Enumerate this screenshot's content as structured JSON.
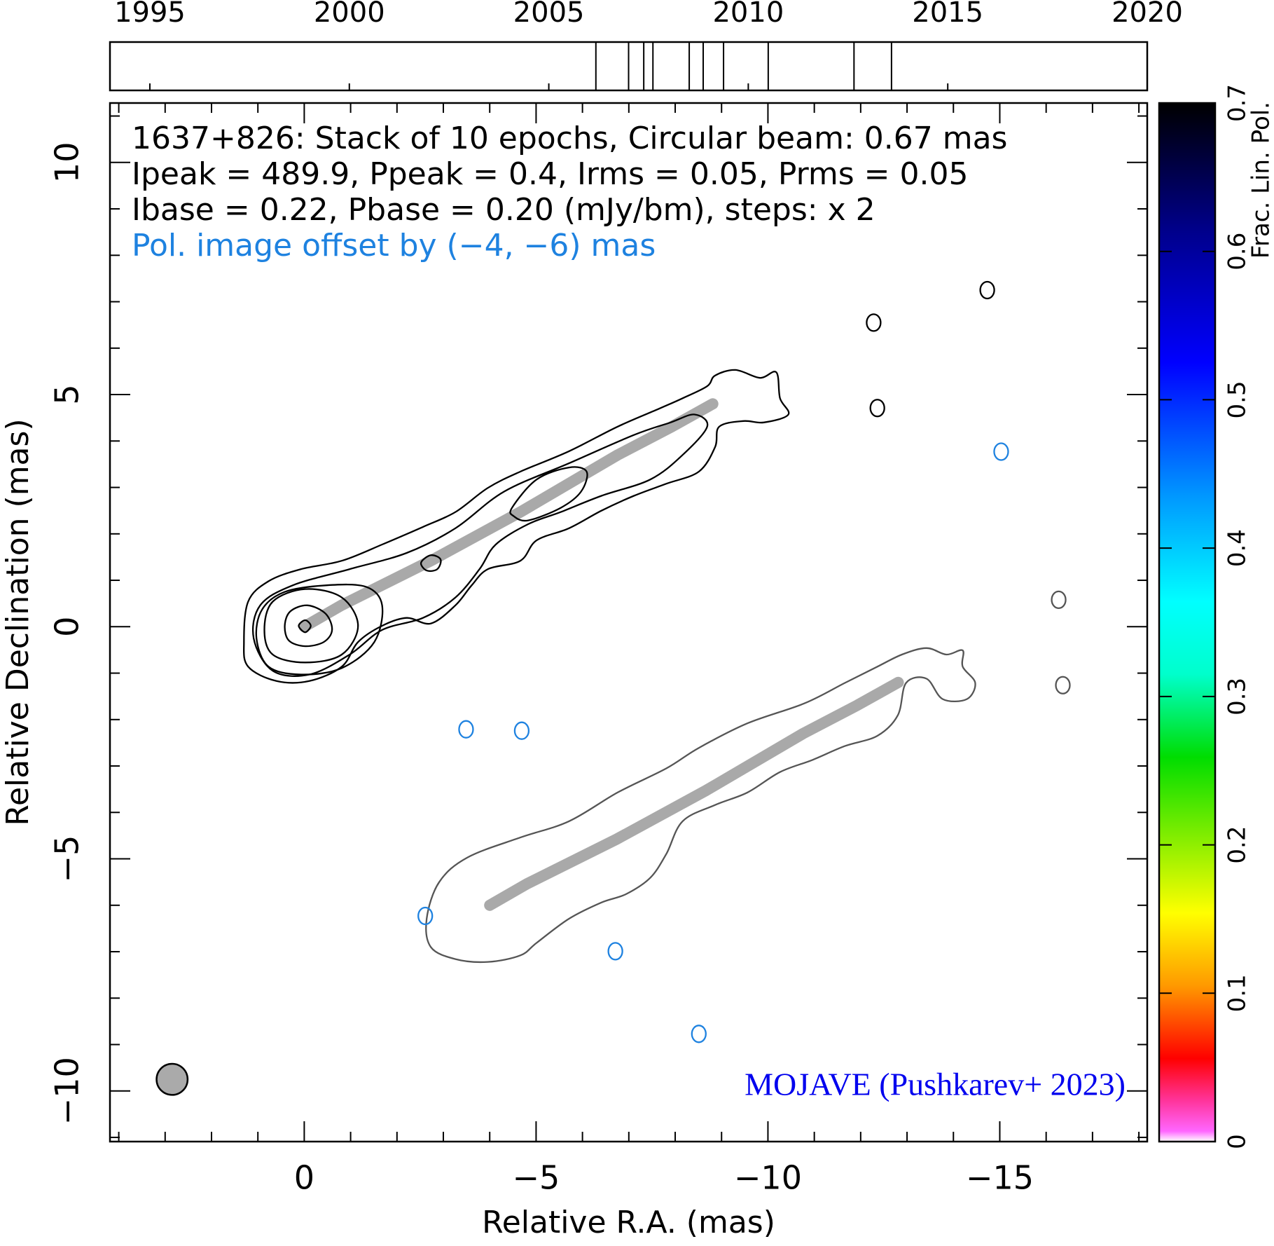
{
  "chart_data": [
    {
      "type": "timeline",
      "xlim": [
        1994.0,
        2020.0
      ],
      "xticks": [
        1995,
        2000,
        2005,
        2010,
        2015,
        2020
      ],
      "epochs": [
        2006.18,
        2007.0,
        2007.38,
        2007.61,
        2008.52,
        2008.87,
        2009.38,
        2010.5,
        2012.65,
        2013.59
      ]
    },
    {
      "type": "contour",
      "title_lines": [
        "1637+826: Stack of 10 epochs, Circular beam: 0.67 mas",
        "Ipeak = 489.9, Ppeak = 0.4, Irms = 0.05, Prms = 0.05",
        "Ibase = 0.22, Pbase = 0.20 (mJy/bm), steps: x 2"
      ],
      "annotation": "Pol. image offset by (−4, −6) mas",
      "annotation_color": "#1e82e0",
      "credit": "MOJAVE (Pushkarev+ 2023)",
      "credit_color": "#0000ee",
      "xlabel": "Relative R.A. (mas)",
      "ylabel": "Relative Declination (mas)",
      "xlim": [
        4.19,
        -18.18
      ],
      "ylim": [
        -11.09,
        11.28
      ],
      "xticks": [
        0,
        {
          "value": -5,
          "label": "−5"
        },
        {
          "value": -10,
          "label": "−10"
        },
        {
          "value": -15,
          "label": "−15"
        }
      ],
      "yticks": [
        {
          "value": -10,
          "label": "−10"
        },
        {
          "value": -5,
          "label": "−5"
        },
        0,
        5,
        10
      ],
      "xminorticks": [
        4,
        3,
        2,
        1,
        -1,
        -2,
        -3,
        -4,
        -6,
        -7,
        -8,
        -9,
        -11,
        -12,
        -13,
        -14,
        -16,
        -17,
        -18
      ],
      "yminorticks": [
        -11,
        -9,
        -8,
        -7,
        -6,
        -4,
        -3,
        -2,
        -1,
        1,
        2,
        3,
        4,
        6,
        7,
        8,
        9,
        11
      ],
      "contours": [
        {
          "color": "#000000",
          "x": [
            1.3,
            1.21,
            0.77,
            0.07,
            -0.81,
            -1.68,
            -2.56,
            -3.26,
            -3.96,
            -4.66,
            -5.71,
            -6.76,
            -7.64,
            -8.16,
            -8.69,
            -8.86,
            -9.3,
            -9.83,
            -10.18,
            -10.26,
            -10.44,
            -9.91,
            -9.47,
            -8.95,
            -8.86,
            -8.51,
            -7.81,
            -7.11,
            -6.41,
            -5.71,
            -5.01,
            -4.66,
            -3.96,
            -3.61,
            -3.26,
            -2.73,
            -2.21,
            -1.68,
            -1.16,
            -0.81,
            -0.11,
            0.6,
            1.21
          ],
          "y": [
            -0.33,
            0.54,
            0.98,
            1.24,
            1.42,
            1.77,
            2.15,
            2.47,
            2.99,
            3.34,
            3.78,
            4.31,
            4.69,
            4.92,
            5.18,
            5.41,
            5.53,
            5.36,
            5.48,
            4.92,
            4.57,
            4.4,
            4.43,
            4.31,
            3.87,
            3.34,
            3.08,
            2.82,
            2.5,
            2.12,
            1.86,
            1.42,
            1.24,
            0.89,
            0.46,
            0.07,
            0.19,
            0.02,
            -0.33,
            -0.86,
            -1.17,
            -1.17,
            -0.86
          ]
        },
        {
          "color": "#000000",
          "x": [
            1.09,
            0.95,
            0.25,
            -0.98,
            -2.21,
            -3.26,
            -4.31,
            -5.71,
            -7.11,
            -7.9,
            -8.42,
            -8.69,
            -8.16,
            -7.46,
            -6.41,
            -5.53,
            -4.83,
            -4.13,
            -3.78,
            -3.26,
            -2.56,
            -1.68,
            -0.98,
            -0.11,
            0.68
          ],
          "y": [
            -0.25,
            0.46,
            0.89,
            1.24,
            1.59,
            2.12,
            2.91,
            3.52,
            4.13,
            4.4,
            4.57,
            4.31,
            3.7,
            3.17,
            2.82,
            2.47,
            2.21,
            1.77,
            1.24,
            0.63,
            0.19,
            -0.07,
            -0.6,
            -1.03,
            -0.95
          ]
        },
        {
          "color": "#000000",
          "x": [
            1.03,
            0.91,
            0.42,
            -0.46,
            -1.33,
            -1.68,
            -1.51,
            -0.81,
            0.07,
            0.77
          ],
          "y": [
            -0.25,
            0.37,
            0.75,
            0.89,
            0.86,
            0.46,
            -0.33,
            -0.89,
            -1.03,
            -0.86
          ]
        },
        {
          "color": "#000000",
          "x": [
            -4.48,
            -5.01,
            -5.71,
            -6.09,
            -5.97,
            -5.53,
            -4.83,
            -4.52
          ],
          "y": [
            2.56,
            3.17,
            3.43,
            3.34,
            2.91,
            2.56,
            2.29,
            2.38
          ]
        },
        {
          "color": "#000000",
          "x": [
            0.86,
            0.68,
            -0.02,
            -0.81,
            -1.16,
            -0.81,
            -0.02,
            0.68
          ],
          "y": [
            -0.07,
            0.54,
            0.81,
            0.63,
            0.02,
            -0.6,
            -0.77,
            -0.6
          ]
        },
        {
          "color": "#000000",
          "x": [
            0.42,
            0.3,
            -0.07,
            -0.46,
            -0.6,
            -0.42,
            -0.02,
            0.33
          ],
          "y": [
            0.02,
            0.33,
            0.46,
            0.28,
            -0.07,
            -0.33,
            -0.42,
            -0.3
          ]
        },
        {
          "color": "#000000",
          "x": [
            0.12,
            -0.02,
            -0.14,
            -0.02
          ],
          "y": [
            0.02,
            0.14,
            0.02,
            -0.12
          ]
        },
        {
          "color": "#000000",
          "x": [
            -2.52,
            -2.73,
            -2.94,
            -2.87,
            -2.64
          ],
          "y": [
            1.38,
            1.54,
            1.45,
            1.24,
            1.21
          ]
        },
        {
          "color": "#555555",
          "x": [
            -2.64,
            -2.91,
            -3.52,
            -4.66,
            -5.71,
            -6.76,
            -7.81,
            -8.51,
            -9.56,
            -10.79,
            -11.66,
            -12.36,
            -12.89,
            -13.42,
            -13.85,
            -14.2,
            -14.2,
            -14.47,
            -14.29,
            -13.77,
            -13.42,
            -12.98,
            -12.8,
            -12.36,
            -11.66,
            -10.96,
            -10.26,
            -9.56,
            -8.86,
            -8.16,
            -7.81,
            -7.46,
            -6.94,
            -6.41,
            -5.71,
            -5.01,
            -4.66,
            -3.96,
            -3.26,
            -2.73
          ],
          "y": [
            -6.29,
            -5.5,
            -4.97,
            -4.54,
            -4.19,
            -3.57,
            -3.05,
            -2.61,
            -2.08,
            -1.65,
            -1.21,
            -0.86,
            -0.6,
            -0.46,
            -0.6,
            -0.51,
            -0.86,
            -1.21,
            -1.56,
            -1.56,
            -1.12,
            -1.21,
            -1.91,
            -2.35,
            -2.57,
            -2.87,
            -3.13,
            -3.57,
            -3.84,
            -4.19,
            -4.89,
            -5.41,
            -5.76,
            -5.94,
            -6.29,
            -6.81,
            -7.08,
            -7.22,
            -7.16,
            -6.9
          ]
        }
      ],
      "spots": [
        {
          "color": "#000000",
          "x": [
            -12.28,
            -12.36,
            -14.73
          ],
          "y": [
            6.55,
            4.71,
            7.25
          ]
        },
        {
          "color": "#555555",
          "x": [
            -16.27,
            -16.36
          ],
          "y": [
            0.58,
            -1.26
          ]
        },
        {
          "color": "#1e82e0",
          "x": [
            -3.49,
            -4.69,
            -15.03,
            -2.61,
            -6.71,
            -8.51
          ],
          "y": [
            -2.21,
            -2.24,
            3.77,
            -6.23,
            -6.99,
            -8.77
          ]
        }
      ],
      "ridges": [
        {
          "color": "#a9a9a9",
          "x": [
            0,
            -0.8,
            -2.73,
            -4.66,
            -6.76,
            -7.93,
            -8.81
          ],
          "y": [
            0,
            0.46,
            1.42,
            2.47,
            3.7,
            4.31,
            4.8
          ]
        },
        {
          "color": "#a9a9a9",
          "x": [
            -4,
            -4.8,
            -6.73,
            -8.66,
            -10.76,
            -11.93,
            -12.81
          ],
          "y": [
            -6,
            -5.54,
            -4.58,
            -3.53,
            -2.3,
            -1.69,
            -1.2
          ]
        }
      ],
      "beam": {
        "x": 2.85,
        "y": -9.75,
        "diameter": 0.67,
        "color": "#aaaaaa"
      }
    },
    {
      "type": "colorbar",
      "label": "Frac. Lin. Pol.",
      "ylim": [
        0,
        0.7
      ],
      "yticks": [
        0,
        0.1,
        0.2,
        0.3,
        0.4,
        0.5,
        0.6,
        0.7
      ]
    }
  ]
}
